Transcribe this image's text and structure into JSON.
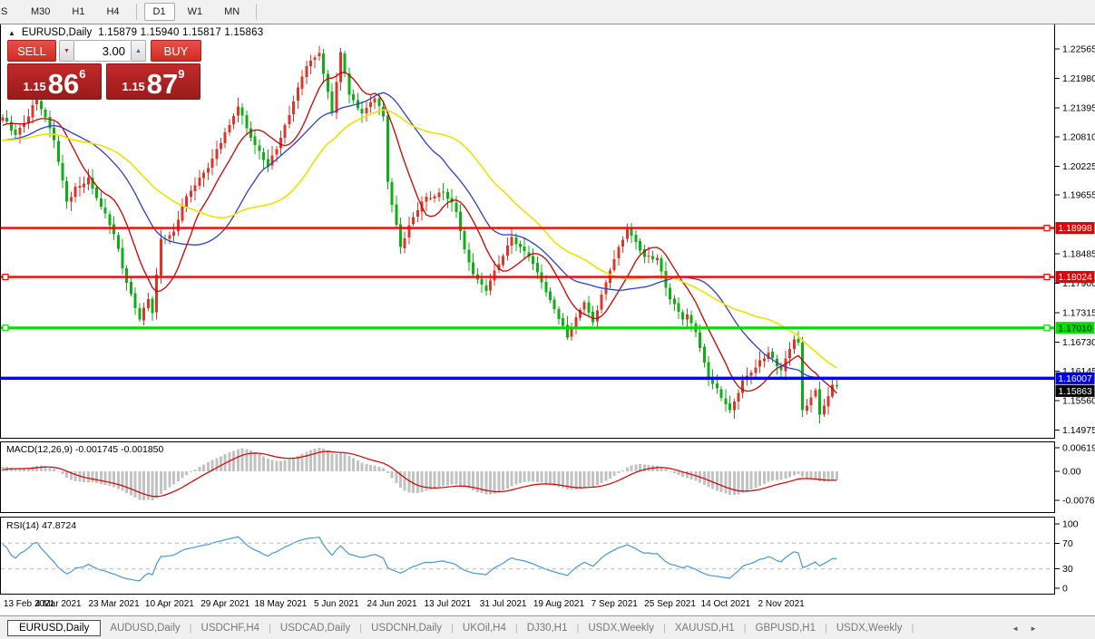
{
  "toolbar": {
    "items": [
      {
        "label": "S",
        "type": "fragment"
      },
      {
        "label": "M30"
      },
      {
        "label": "H1"
      },
      {
        "label": "H4"
      },
      {
        "type": "sep"
      },
      {
        "label": "D1",
        "active": true
      },
      {
        "label": "W1"
      },
      {
        "label": "MN"
      },
      {
        "type": "sep"
      }
    ]
  },
  "chart_header": {
    "collapse_icon": "▲",
    "symbol": "EURUSD,Daily",
    "ohlc": "1.15879 1.15940 1.15817 1.15863"
  },
  "trade_panel": {
    "sell_label": "SELL",
    "buy_label": "BUY",
    "volume": "3.00",
    "spinner_down_icon": "▼",
    "spinner_up_icon": "▲",
    "sell": {
      "prefix": "1.15",
      "big": "86",
      "sup": "6"
    },
    "buy": {
      "prefix": "1.15",
      "big": "87",
      "sup": "9"
    }
  },
  "macd": {
    "label": "MACD(12,26,9) -0.001745 -0.001850",
    "axis": [
      "0.006193",
      "0.00",
      "-0.007621"
    ],
    "bar_color": "#c2c2c2",
    "signal_color": "#cd0000"
  },
  "rsi": {
    "label": "RSI(14) 47.8724",
    "axis": [
      "100",
      "70",
      "30",
      "0"
    ],
    "line_color": "#4a96d2",
    "level_lines": [
      70,
      30
    ]
  },
  "tabs": {
    "items": [
      {
        "label": "EURUSD,Daily",
        "active": true
      },
      {
        "label": "AUDUSD,Daily"
      },
      {
        "label": "USDCHF,H4"
      },
      {
        "label": "USDCAD,Daily"
      },
      {
        "label": "USDCNH,Daily"
      },
      {
        "label": "UKOil,H4"
      },
      {
        "label": "DJ30,H1"
      },
      {
        "label": "USDX,Weekly"
      },
      {
        "label": "XAUUSD,H1"
      },
      {
        "label": "GBPUSD,H1"
      },
      {
        "label": "USDX,Weekly"
      }
    ],
    "scroll_left_icon": "◄",
    "scroll_right_icon": "►"
  },
  "chart_data": {
    "type": "candlestick",
    "symbol": "EURUSD",
    "timeframe": "Daily",
    "current_ohlc": {
      "open": 1.15879,
      "high": 1.1594,
      "low": 1.15817,
      "close": 1.15863
    },
    "price_axis_ticks": [
      "1.22565",
      "1.21980",
      "1.21395",
      "1.20810",
      "1.20225",
      "1.19655",
      "1.18485",
      "1.17900",
      "1.17315",
      "1.16730",
      "1.16145",
      "1.15560",
      "1.14975"
    ],
    "levels": [
      {
        "label": "1.18998",
        "price": 1.18998,
        "color": "#f40000",
        "label_bg": "#e30000",
        "label_fg": "#ffffff",
        "width": 2.4,
        "marker_left": false,
        "marker_right": true
      },
      {
        "label": "1.18024",
        "price": 1.18024,
        "color": "#f40000",
        "label_bg": "#e30000",
        "label_fg": "#ffffff",
        "width": 2.4,
        "marker_left": true,
        "marker_right": true
      },
      {
        "label": "1.17010",
        "price": 1.1701,
        "color": "#00d900",
        "label_bg": "#00e000",
        "label_fg": "#000000",
        "width": 3,
        "marker_left": true,
        "marker_right": true
      },
      {
        "label": "1.16007",
        "price": 1.16007,
        "color": "#0000e8",
        "label_bg": "#0000e8",
        "label_fg": "#ffffff",
        "width": 3.4,
        "marker_left": false,
        "marker_right": false
      }
    ],
    "current_price_label": {
      "label": "1.15863",
      "price": 1.15863,
      "label_bg": "#000000",
      "label_fg": "#ffffff"
    },
    "date_labels": [
      "13 Feb 2021",
      "4 Mar 2021",
      "23 Mar 2021",
      "10 Apr 2021",
      "29 Apr 2021",
      "18 May 2021",
      "5 Jun 2021",
      "24 Jun 2021",
      "13 Jul 2021",
      "31 Jul 2021",
      "19 Aug 2021",
      "7 Sep 2021",
      "25 Sep 2021",
      "14 Oct 2021",
      "2 Nov 2021"
    ],
    "candles_per_date_label": 13,
    "total_candles": 196,
    "up_color": "#dc352b",
    "down_color": "#0caf14",
    "moving_averages": [
      {
        "period": 10,
        "color": "#cc0000"
      },
      {
        "period": 25,
        "color": "#2e3ec9"
      },
      {
        "period": 40,
        "color": "#efe000"
      }
    ],
    "prehistory_anchors": [
      [
        -60,
        1.221
      ],
      [
        -48,
        1.213
      ],
      [
        -36,
        1.206
      ],
      [
        -26,
        1.209
      ],
      [
        -18,
        1.2035
      ],
      [
        -10,
        1.207
      ],
      [
        -5,
        1.211
      ],
      [
        -1,
        1.2115
      ]
    ],
    "anchors": [
      [
        0,
        1.212
      ],
      [
        3,
        1.2085
      ],
      [
        8,
        1.2155
      ],
      [
        10,
        1.212
      ],
      [
        12,
        1.2075
      ],
      [
        15,
        1.1952
      ],
      [
        20,
        1.2
      ],
      [
        22,
        1.196
      ],
      [
        26,
        1.1888
      ],
      [
        28,
        1.182
      ],
      [
        30,
        1.1768
      ],
      [
        32,
        1.1718
      ],
      [
        34,
        1.1758
      ],
      [
        35,
        1.173
      ],
      [
        37,
        1.1878
      ],
      [
        40,
        1.1893
      ],
      [
        42,
        1.1945
      ],
      [
        45,
        1.1985
      ],
      [
        49,
        1.2038
      ],
      [
        53,
        1.2105
      ],
      [
        55,
        1.2142
      ],
      [
        59,
        1.2065
      ],
      [
        62,
        1.2022
      ],
      [
        65,
        1.208
      ],
      [
        68,
        1.2152
      ],
      [
        71,
        1.2222
      ],
      [
        74,
        1.2248
      ],
      [
        77,
        1.213
      ],
      [
        79,
        1.225
      ],
      [
        81,
        1.2165
      ],
      [
        84,
        1.2128
      ],
      [
        87,
        1.2158
      ],
      [
        89,
        1.2122
      ],
      [
        90,
        1.1992
      ],
      [
        93,
        1.1862
      ],
      [
        96,
        1.1922
      ],
      [
        99,
        1.1962
      ],
      [
        103,
        1.1972
      ],
      [
        106,
        1.1932
      ],
      [
        108,
        1.1858
      ],
      [
        110,
        1.1808
      ],
      [
        113,
        1.1775
      ],
      [
        116,
        1.1828
      ],
      [
        119,
        1.1882
      ],
      [
        121,
        1.1862
      ],
      [
        123,
        1.1842
      ],
      [
        126,
        1.1792
      ],
      [
        129,
        1.1738
      ],
      [
        132,
        1.1682
      ],
      [
        134,
        1.1722
      ],
      [
        136,
        1.1752
      ],
      [
        138,
        1.1712
      ],
      [
        141,
        1.1792
      ],
      [
        144,
        1.1862
      ],
      [
        146,
        1.1897
      ],
      [
        150,
        1.1842
      ],
      [
        153,
        1.184
      ],
      [
        156,
        1.1758
      ],
      [
        159,
        1.1718
      ],
      [
        160,
        1.1728
      ],
      [
        162,
        1.1692
      ],
      [
        165,
        1.1602
      ],
      [
        168,
        1.1562
      ],
      [
        170,
        1.1537
      ],
      [
        173,
        1.1597
      ],
      [
        176,
        1.1622
      ],
      [
        179,
        1.1652
      ],
      [
        182,
        1.1617
      ],
      [
        185,
        1.1678
      ],
      [
        186,
        1.1672
      ],
      [
        187,
        1.1537
      ],
      [
        190,
        1.1577
      ],
      [
        191,
        1.1528
      ],
      [
        193,
        1.1565
      ],
      [
        194,
        1.15879
      ],
      [
        195,
        1.15863
      ]
    ]
  }
}
